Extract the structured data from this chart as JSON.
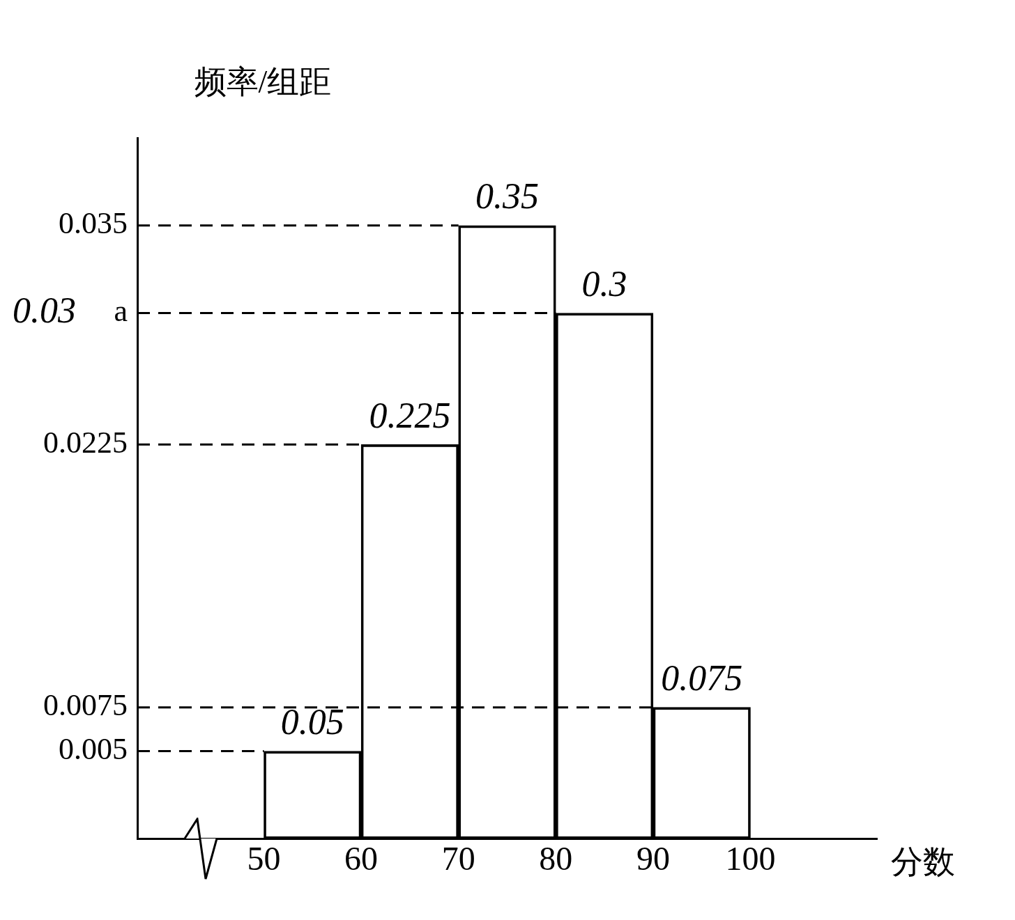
{
  "chart_data": {
    "type": "histogram",
    "xlabel": "分数",
    "ylabel": "频率/组距",
    "bins": [
      50,
      60,
      70,
      80,
      90,
      100
    ],
    "values": [
      0.005,
      0.0225,
      0.035,
      0.03,
      0.0075
    ],
    "color": "#000000",
    "xlim": [
      37,
      113
    ],
    "xticks": [
      50,
      60,
      70,
      80,
      90,
      100
    ],
    "ylim": [
      0,
      0.04
    ],
    "yticks": [
      0.005,
      0.0075,
      0.0225,
      {
        "value": 0.03,
        "label": "a"
      },
      0.035
    ],
    "grid": false,
    "legend": false,
    "ref_lines": [
      {
        "axis": "y",
        "value": 0.005,
        "line_style": "dashed"
      },
      {
        "axis": "y",
        "value": 0.0075,
        "line_style": "dashed"
      },
      {
        "axis": "y",
        "value": 0.0225,
        "line_style": "dashed"
      },
      {
        "axis": "y",
        "value": 0.03,
        "line_style": "dashed"
      },
      {
        "axis": "y",
        "value": 0.035,
        "line_style": "dashed"
      }
    ],
    "annotations": [
      {
        "text": "0.05",
        "x": 55,
        "y": 0.005
      },
      {
        "text": "0.225",
        "x": 65,
        "y": 0.0225
      },
      {
        "text": "0.35",
        "x": 75,
        "y": 0.035
      },
      {
        "text": "0.3",
        "x": 85,
        "y": 0.03
      },
      {
        "text": "0.075",
        "x": 95,
        "y": 0.0075
      },
      "0.03"
    ]
  }
}
